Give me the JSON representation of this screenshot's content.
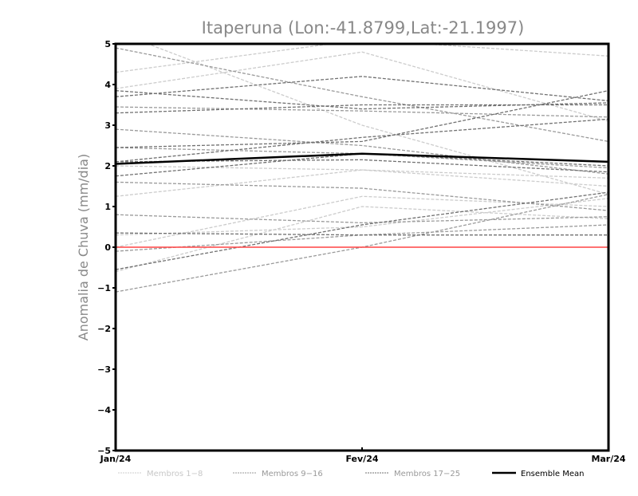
{
  "chart_data": {
    "type": "line",
    "title": "Itaperuna (Lon:-41.8799,Lat:-21.1997)",
    "xlabel": "",
    "ylabel": "Anomalia de Chuva (mm/dia)",
    "ylim": [
      -5,
      5
    ],
    "yticks": [
      "-5",
      "-4",
      "-3",
      "-2",
      "-1",
      "0",
      "1",
      "2",
      "3",
      "4",
      "5"
    ],
    "categories": [
      "Jan/24",
      "Fev/24",
      "Mar/24"
    ],
    "groups": [
      {
        "name": "Membros 1-8",
        "color": "#cccccc",
        "series": [
          [
            4.3,
            5.1,
            4.7
          ],
          [
            3.9,
            4.8,
            3.1
          ],
          [
            5.3,
            3.0,
            1.3
          ],
          [
            1.25,
            1.9,
            1.7
          ],
          [
            0.0,
            1.25,
            1.0
          ],
          [
            -0.6,
            1.0,
            0.7
          ],
          [
            2.0,
            1.9,
            1.5
          ],
          [
            0.3,
            0.5,
            1.2
          ]
        ]
      },
      {
        "name": "Membros 9-16",
        "color": "#9a9a9a",
        "series": [
          [
            4.9,
            3.7,
            2.6
          ],
          [
            3.45,
            3.35,
            3.2
          ],
          [
            2.9,
            2.5,
            1.8
          ],
          [
            2.45,
            2.3,
            1.95
          ],
          [
            1.6,
            1.45,
            0.9
          ],
          [
            0.8,
            0.6,
            0.75
          ],
          [
            -0.1,
            0.3,
            0.55
          ],
          [
            -1.1,
            0.0,
            1.3
          ]
        ]
      },
      {
        "name": "Membros 17-25",
        "color": "#707070",
        "series": [
          [
            3.85,
            3.4,
            3.55
          ],
          [
            3.7,
            4.2,
            3.6
          ],
          [
            3.3,
            3.5,
            3.5
          ],
          [
            2.45,
            2.6,
            3.85
          ],
          [
            2.1,
            2.7,
            3.15
          ],
          [
            2.1,
            2.15,
            1.85
          ],
          [
            1.75,
            2.3,
            2.0
          ],
          [
            0.35,
            0.3,
            0.3
          ],
          [
            -0.55,
            0.55,
            1.35
          ]
        ]
      }
    ],
    "ensemble_mean": {
      "name": "Ensemble Mean",
      "color": "#000000",
      "values": [
        2.05,
        2.3,
        2.1
      ]
    },
    "zero_line_color": "#ff4444",
    "legend_placement": "bottom",
    "grid": false
  }
}
